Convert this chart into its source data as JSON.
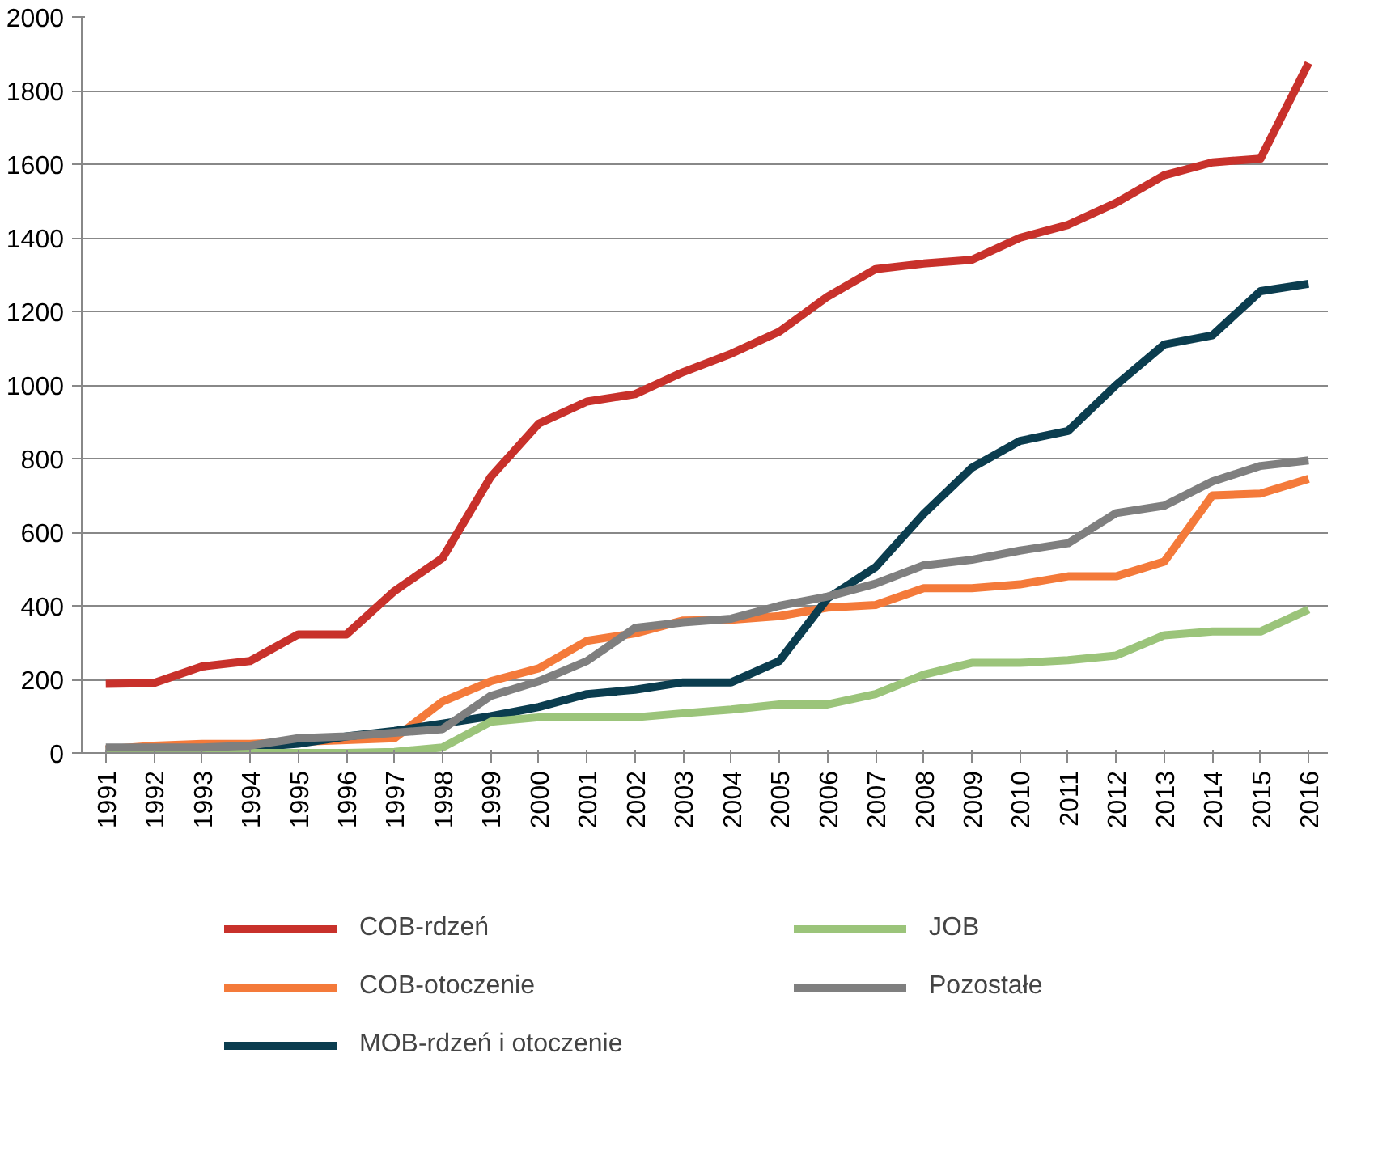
{
  "chart_data": {
    "type": "line",
    "categories": [
      "1991",
      "1992",
      "1993",
      "1994",
      "1995",
      "1996",
      "1997",
      "1998",
      "1999",
      "2000",
      "2001",
      "2002",
      "2003",
      "2004",
      "2005",
      "2006",
      "2007",
      "2008",
      "2009",
      "2010",
      "2011",
      "2012",
      "2013",
      "2014",
      "2015",
      "2016"
    ],
    "series": [
      {
        "name": "COB-rdzeń",
        "color": "#c8312b",
        "values": [
          188,
          190,
          235,
          250,
          322,
          322,
          440,
          530,
          750,
          895,
          955,
          975,
          1035,
          1085,
          1145,
          1240,
          1315,
          1330,
          1340,
          1400,
          1435,
          1495,
          1570,
          1605,
          1615,
          1875
        ]
      },
      {
        "name": "COB-otoczenie",
        "color": "#f47a3a",
        "values": [
          10,
          20,
          25,
          25,
          30,
          35,
          40,
          140,
          195,
          230,
          305,
          325,
          360,
          362,
          372,
          395,
          402,
          448,
          448,
          458,
          480,
          480,
          520,
          700,
          705,
          745
        ]
      },
      {
        "name": "MOB-rdzeń i otoczenie",
        "color": "#0b3d4f",
        "values": [
          10,
          10,
          10,
          15,
          25,
          45,
          60,
          80,
          100,
          125,
          160,
          172,
          192,
          192,
          250,
          420,
          505,
          650,
          775,
          848,
          875,
          1000,
          1110,
          1135,
          1255,
          1275
        ]
      },
      {
        "name": "JOB",
        "color": "#9bc47a",
        "values": [
          0,
          0,
          0,
          0,
          0,
          0,
          3,
          15,
          85,
          97,
          97,
          97,
          108,
          118,
          132,
          132,
          160,
          213,
          245,
          245,
          252,
          265,
          320,
          330,
          330,
          390
        ]
      },
      {
        "name": "Pozostałe",
        "color": "#7f7f7f",
        "values": [
          15,
          15,
          15,
          20,
          40,
          45,
          55,
          65,
          155,
          195,
          250,
          340,
          355,
          365,
          400,
          425,
          460,
          510,
          525,
          550,
          570,
          652,
          672,
          738,
          780,
          795
        ]
      }
    ],
    "ylim": [
      0,
      2000
    ],
    "yticks": [
      0,
      200,
      400,
      600,
      800,
      1000,
      1200,
      1400,
      1600,
      1800,
      2000
    ],
    "grid": "y",
    "legend": "bottom",
    "marker": "none",
    "line_style": "solid"
  }
}
